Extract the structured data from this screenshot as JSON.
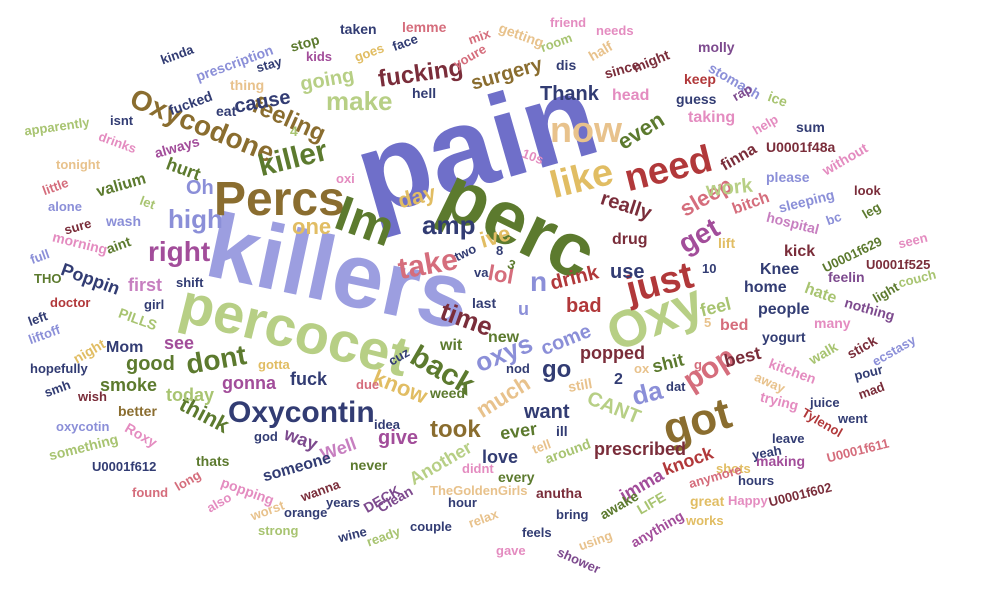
{
  "palette": {
    "purple": "#6f6fc9",
    "lavender": "#9c9ee0",
    "olive": "#5c7a2e",
    "lightgreen": "#b7cf85",
    "brown": "#8a6d2f",
    "gold": "#e1bd63",
    "red": "#b1383a",
    "rose": "#d56d7c",
    "pink": "#e48cc0",
    "magenta": "#a24d9a",
    "navy": "#323c73",
    "maroon": "#7a2d3a",
    "tan": "#e8c28c",
    "periwinkle": "#8b8fd8",
    "green": "#7ea54e",
    "sage": "#a8c471",
    "violet": "#7d4a8e",
    "orchid": "#c77fc0"
  },
  "words": [
    {
      "text": "pain",
      "color": "purple"
    },
    {
      "text": "killers",
      "color": "lavender"
    },
    {
      "text": "perc",
      "color": "olive"
    },
    {
      "text": "percocet",
      "color": "lightgreen"
    },
    {
      "text": "Percs",
      "color": "brown"
    },
    {
      "text": "Oxy",
      "color": "lightgreen"
    },
    {
      "text": "Im",
      "color": "olive"
    },
    {
      "text": "got",
      "color": "brown"
    },
    {
      "text": "just",
      "color": "red"
    },
    {
      "text": "like",
      "color": "gold"
    },
    {
      "text": "need",
      "color": "red"
    },
    {
      "text": "now",
      "color": "tan"
    },
    {
      "text": "Oxycontin",
      "color": "navy"
    },
    {
      "text": "Oxycodone",
      "color": "brown"
    },
    {
      "text": "killer",
      "color": "olive"
    },
    {
      "text": "take",
      "color": "rose"
    },
    {
      "text": "back",
      "color": "olive"
    },
    {
      "text": "pop",
      "color": "rose"
    },
    {
      "text": "right",
      "color": "magenta"
    },
    {
      "text": "dont",
      "color": "olive"
    },
    {
      "text": "make",
      "color": "lightgreen"
    },
    {
      "text": "amp",
      "color": "navy"
    },
    {
      "text": "time",
      "color": "maroon"
    },
    {
      "text": "fucking",
      "color": "maroon"
    },
    {
      "text": "get",
      "color": "magenta"
    },
    {
      "text": "oxys",
      "color": "periwinkle"
    },
    {
      "text": "feeling",
      "color": "brown"
    },
    {
      "text": "da",
      "color": "periwinkle"
    },
    {
      "text": "took",
      "color": "brown"
    },
    {
      "text": "going",
      "color": "lightgreen"
    },
    {
      "text": "Thank",
      "color": "navy"
    },
    {
      "text": "surgery",
      "color": "brown"
    },
    {
      "text": "cause",
      "color": "navy"
    },
    {
      "text": "high",
      "color": "periwinkle"
    },
    {
      "text": "one",
      "color": "gold"
    },
    {
      "text": "sleep",
      "color": "rose"
    },
    {
      "text": "even",
      "color": "olive"
    },
    {
      "text": "work",
      "color": "lightgreen"
    },
    {
      "text": "day",
      "color": "gold"
    },
    {
      "text": "really",
      "color": "maroon"
    },
    {
      "text": "lol",
      "color": "rose"
    },
    {
      "text": "ive",
      "color": "gold"
    },
    {
      "text": "use",
      "color": "navy"
    },
    {
      "text": "drink",
      "color": "red"
    },
    {
      "text": "bad",
      "color": "red"
    },
    {
      "text": "go",
      "color": "navy"
    },
    {
      "text": "come",
      "color": "periwinkle"
    },
    {
      "text": "much",
      "color": "tan"
    },
    {
      "text": "know",
      "color": "gold"
    },
    {
      "text": "give",
      "color": "magenta"
    },
    {
      "text": "think",
      "color": "olive"
    },
    {
      "text": "today",
      "color": "sage"
    },
    {
      "text": "good",
      "color": "olive"
    },
    {
      "text": "see",
      "color": "magenta"
    },
    {
      "text": "hurt",
      "color": "olive"
    },
    {
      "text": "Oh",
      "color": "periwinkle"
    },
    {
      "text": "Poppin",
      "color": "navy"
    },
    {
      "text": "first",
      "color": "orchid"
    },
    {
      "text": "n",
      "color": "periwinkle"
    },
    {
      "text": "popped",
      "color": "maroon"
    },
    {
      "text": "shit",
      "color": "olive"
    },
    {
      "text": "want",
      "color": "navy"
    },
    {
      "text": "CANT",
      "color": "lightgreen"
    },
    {
      "text": "ever",
      "color": "olive"
    },
    {
      "text": "love",
      "color": "navy"
    },
    {
      "text": "Another",
      "color": "lightgreen"
    },
    {
      "text": "prescribed",
      "color": "maroon"
    },
    {
      "text": "imma",
      "color": "magenta"
    },
    {
      "text": "knock",
      "color": "red"
    },
    {
      "text": "Well",
      "color": "orchid"
    },
    {
      "text": "fuck",
      "color": "navy"
    },
    {
      "text": "gonna",
      "color": "magenta"
    },
    {
      "text": "smoke",
      "color": "olive"
    },
    {
      "text": "way",
      "color": "violet"
    },
    {
      "text": "someone",
      "color": "navy"
    },
    {
      "text": "Mom",
      "color": "navy"
    },
    {
      "text": "new",
      "color": "olive"
    },
    {
      "text": "wit",
      "color": "olive"
    },
    {
      "text": "last",
      "color": "navy"
    },
    {
      "text": "u",
      "color": "periwinkle"
    },
    {
      "text": "feel",
      "color": "sage"
    },
    {
      "text": "bed",
      "color": "rose"
    },
    {
      "text": "best",
      "color": "maroon"
    },
    {
      "text": "people",
      "color": "navy"
    },
    {
      "text": "home",
      "color": "navy"
    },
    {
      "text": "hate",
      "color": "sage"
    },
    {
      "text": "Knee",
      "color": "navy"
    },
    {
      "text": "kick",
      "color": "maroon"
    },
    {
      "text": "drug",
      "color": "maroon"
    },
    {
      "text": "lift",
      "color": "gold"
    },
    {
      "text": "finna",
      "color": "maroon"
    },
    {
      "text": "bitch",
      "color": "rose"
    },
    {
      "text": "please",
      "color": "periwinkle"
    },
    {
      "text": "taking",
      "color": "pink"
    },
    {
      "text": "guess",
      "color": "navy"
    },
    {
      "text": "head",
      "color": "pink"
    },
    {
      "text": "since",
      "color": "maroon"
    },
    {
      "text": "might",
      "color": "maroon"
    },
    {
      "text": "keep",
      "color": "red"
    },
    {
      "text": "molly",
      "color": "violet"
    },
    {
      "text": "stomach",
      "color": "periwinkle"
    },
    {
      "text": "rap",
      "color": "violet"
    },
    {
      "text": "help",
      "color": "pink"
    },
    {
      "text": "ice",
      "color": "sage"
    },
    {
      "text": "sum",
      "color": "navy"
    },
    {
      "text": "U0001f48a",
      "color": "maroon"
    },
    {
      "text": "without",
      "color": "pink"
    },
    {
      "text": "look",
      "color": "maroon"
    },
    {
      "text": "bc",
      "color": "periwinkle"
    },
    {
      "text": "leg",
      "color": "olive"
    },
    {
      "text": "sleeping",
      "color": "periwinkle"
    },
    {
      "text": "hospital",
      "color": "orchid"
    },
    {
      "text": "U0001f629",
      "color": "olive"
    },
    {
      "text": "seen",
      "color": "pink"
    },
    {
      "text": "feelin",
      "color": "violet"
    },
    {
      "text": "U0001f525",
      "color": "maroon"
    },
    {
      "text": "couch",
      "color": "sage"
    },
    {
      "text": "light",
      "color": "olive"
    },
    {
      "text": "many",
      "color": "pink"
    },
    {
      "text": "nothing",
      "color": "violet"
    },
    {
      "text": "kitchen",
      "color": "pink"
    },
    {
      "text": "walk",
      "color": "sage"
    },
    {
      "text": "stick",
      "color": "maroon"
    },
    {
      "text": "pour",
      "color": "navy"
    },
    {
      "text": "ecstasy",
      "color": "periwinkle"
    },
    {
      "text": "yogurt",
      "color": "navy"
    },
    {
      "text": "away",
      "color": "tan"
    },
    {
      "text": "mad",
      "color": "maroon"
    },
    {
      "text": "trying",
      "color": "pink"
    },
    {
      "text": "juice",
      "color": "navy"
    },
    {
      "text": "went",
      "color": "navy"
    },
    {
      "text": "leave",
      "color": "navy"
    },
    {
      "text": "Tylenol",
      "color": "red"
    },
    {
      "text": "yeah",
      "color": "navy"
    },
    {
      "text": "U0001f611",
      "color": "rose"
    },
    {
      "text": "making",
      "color": "magenta"
    },
    {
      "text": "shots",
      "color": "gold"
    },
    {
      "text": "hours",
      "color": "navy"
    },
    {
      "text": "anymore",
      "color": "rose"
    },
    {
      "text": "great",
      "color": "gold"
    },
    {
      "text": "Happy",
      "color": "pink"
    },
    {
      "text": "U0001f602",
      "color": "maroon"
    },
    {
      "text": "works",
      "color": "gold"
    },
    {
      "text": "LIFE",
      "color": "sage"
    },
    {
      "text": "awake",
      "color": "olive"
    },
    {
      "text": "anything",
      "color": "magenta"
    },
    {
      "text": "using",
      "color": "tan"
    },
    {
      "text": "shower",
      "color": "violet"
    },
    {
      "text": "gave",
      "color": "pink"
    },
    {
      "text": "feels",
      "color": "navy"
    },
    {
      "text": "bring",
      "color": "navy"
    },
    {
      "text": "anutha",
      "color": "maroon"
    },
    {
      "text": "couple",
      "color": "navy"
    },
    {
      "text": "hour",
      "color": "navy"
    },
    {
      "text": "relax",
      "color": "tan"
    },
    {
      "text": "TheGoldenGirls",
      "color": "tan"
    },
    {
      "text": "didnt",
      "color": "pink"
    },
    {
      "text": "every",
      "color": "olive"
    },
    {
      "text": "tell",
      "color": "tan"
    },
    {
      "text": "around",
      "color": "sage"
    },
    {
      "text": "ill",
      "color": "navy"
    },
    {
      "text": "still",
      "color": "tan"
    },
    {
      "text": "weed",
      "color": "olive"
    },
    {
      "text": "idea",
      "color": "navy"
    },
    {
      "text": "never",
      "color": "olive"
    },
    {
      "text": "Clean",
      "color": "violet"
    },
    {
      "text": "DECK",
      "color": "violet"
    },
    {
      "text": "ready",
      "color": "sage"
    },
    {
      "text": "wine",
      "color": "navy"
    },
    {
      "text": "years",
      "color": "navy"
    },
    {
      "text": "wanna",
      "color": "maroon"
    },
    {
      "text": "orange",
      "color": "navy"
    },
    {
      "text": "strong",
      "color": "sage"
    },
    {
      "text": "worst",
      "color": "tan"
    },
    {
      "text": "god",
      "color": "navy"
    },
    {
      "text": "popping",
      "color": "pink"
    },
    {
      "text": "thats",
      "color": "olive"
    },
    {
      "text": "found",
      "color": "rose"
    },
    {
      "text": "long",
      "color": "rose"
    },
    {
      "text": "also",
      "color": "pink"
    },
    {
      "text": "Roxy",
      "color": "pink"
    },
    {
      "text": "U0001f612",
      "color": "navy"
    },
    {
      "text": "something",
      "color": "sage"
    },
    {
      "text": "oxycotin",
      "color": "periwinkle"
    },
    {
      "text": "better",
      "color": "brown"
    },
    {
      "text": "wish",
      "color": "maroon"
    },
    {
      "text": "smh",
      "color": "navy"
    },
    {
      "text": "hopefully",
      "color": "navy"
    },
    {
      "text": "night",
      "color": "gold"
    },
    {
      "text": "liftoff",
      "color": "periwinkle"
    },
    {
      "text": "left",
      "color": "navy"
    },
    {
      "text": "PILLS",
      "color": "sage"
    },
    {
      "text": "doctor",
      "color": "red"
    },
    {
      "text": "THO",
      "color": "olive"
    },
    {
      "text": "girl",
      "color": "navy"
    },
    {
      "text": "shift",
      "color": "navy"
    },
    {
      "text": "full",
      "color": "periwinkle"
    },
    {
      "text": "morning",
      "color": "pink"
    },
    {
      "text": "aint",
      "color": "olive"
    },
    {
      "text": "sure",
      "color": "maroon"
    },
    {
      "text": "wash",
      "color": "periwinkle"
    },
    {
      "text": "alone",
      "color": "periwinkle"
    },
    {
      "text": "little",
      "color": "rose"
    },
    {
      "text": "valium",
      "color": "olive"
    },
    {
      "text": "let",
      "color": "sage"
    },
    {
      "text": "tonight",
      "color": "tan"
    },
    {
      "text": "drinks",
      "color": "pink"
    },
    {
      "text": "always",
      "color": "magenta"
    },
    {
      "text": "apparently",
      "color": "sage"
    },
    {
      "text": "isnt",
      "color": "navy"
    },
    {
      "text": "eat",
      "color": "navy"
    },
    {
      "text": "fucked",
      "color": "navy"
    },
    {
      "text": "thing",
      "color": "tan"
    },
    {
      "text": "prescription",
      "color": "periwinkle"
    },
    {
      "text": "kinda",
      "color": "navy"
    },
    {
      "text": "stay",
      "color": "navy"
    },
    {
      "text": "stop",
      "color": "olive"
    },
    {
      "text": "kids",
      "color": "magenta"
    },
    {
      "text": "taken",
      "color": "navy"
    },
    {
      "text": "goes",
      "color": "gold"
    },
    {
      "text": "face",
      "color": "navy"
    },
    {
      "text": "lemme",
      "color": "rose"
    },
    {
      "text": "hell",
      "color": "navy"
    },
    {
      "text": "mix",
      "color": "rose"
    },
    {
      "text": "youre",
      "color": "rose"
    },
    {
      "text": "getting",
      "color": "tan"
    },
    {
      "text": "friend",
      "color": "pink"
    },
    {
      "text": "room",
      "color": "sage"
    },
    {
      "text": "dis",
      "color": "navy"
    },
    {
      "text": "half",
      "color": "tan"
    },
    {
      "text": "needs",
      "color": "pink"
    },
    {
      "text": "4",
      "color": "sage"
    },
    {
      "text": "10s",
      "color": "pink"
    },
    {
      "text": "oxi",
      "color": "pink"
    },
    {
      "text": "two",
      "color": "navy"
    },
    {
      "text": "8",
      "color": "navy"
    },
    {
      "text": "3",
      "color": "olive"
    },
    {
      "text": "va",
      "color": "navy"
    },
    {
      "text": "10",
      "color": "navy"
    },
    {
      "text": "5",
      "color": "tan"
    },
    {
      "text": "2",
      "color": "navy"
    },
    {
      "text": "g",
      "color": "rose"
    },
    {
      "text": "ox",
      "color": "tan"
    },
    {
      "text": "dat",
      "color": "navy"
    },
    {
      "text": "cuz",
      "color": "navy"
    },
    {
      "text": "nod",
      "color": "navy"
    },
    {
      "text": "due",
      "color": "rose"
    },
    {
      "text": "gotta",
      "color": "gold"
    }
  ]
}
